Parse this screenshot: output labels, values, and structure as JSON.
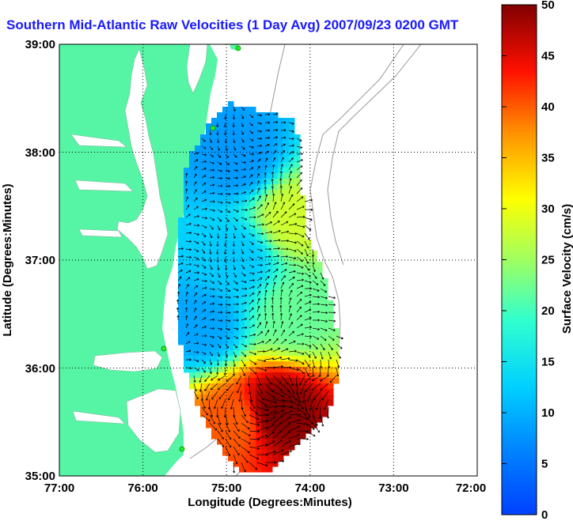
{
  "chart_data": {
    "type": "heatmap",
    "title": "Southern Mid-Atlantic Raw Velocities (1 Day Avg) 2007/09/23 0200 GMT",
    "xlabel": "Longitude (Degrees:Minutes)",
    "ylabel": "Latitude (Degrees:Minutes)",
    "x_ticks": [
      "77:00",
      "76:00",
      "75:00",
      "74:00",
      "73:00",
      "72:00"
    ],
    "y_ticks": [
      "39:00",
      "38:00",
      "37:00",
      "36:00",
      "35:00"
    ],
    "xlim": [
      -77,
      -72
    ],
    "ylim": [
      35,
      39
    ],
    "grid": true,
    "colorbar": {
      "label": "Surface Velocity (cm/s)",
      "range": [
        0,
        50
      ],
      "ticks": [
        "50",
        "45",
        "40",
        "35",
        "30",
        "25",
        "20",
        "15",
        "10",
        "5",
        "0"
      ],
      "colormap": "jet"
    },
    "colors": {
      "land": "#55f5a5",
      "title": "#1a1aff",
      "contour": "#999999",
      "vectors": "#000000"
    },
    "speed_regions": [
      {
        "lon": -74.85,
        "lat": 37.95,
        "speed_cm_s": 8
      },
      {
        "lon": -74.2,
        "lat": 37.4,
        "speed_cm_s": 28
      },
      {
        "lon": -74.9,
        "lat": 37.0,
        "speed_cm_s": 12
      },
      {
        "lon": -75.3,
        "lat": 36.4,
        "speed_cm_s": 9
      },
      {
        "lon": -74.2,
        "lat": 36.5,
        "speed_cm_s": 22
      },
      {
        "lon": -74.4,
        "lat": 35.6,
        "speed_cm_s": 50
      },
      {
        "lon": -74.9,
        "lat": 35.5,
        "speed_cm_s": 40
      }
    ]
  }
}
